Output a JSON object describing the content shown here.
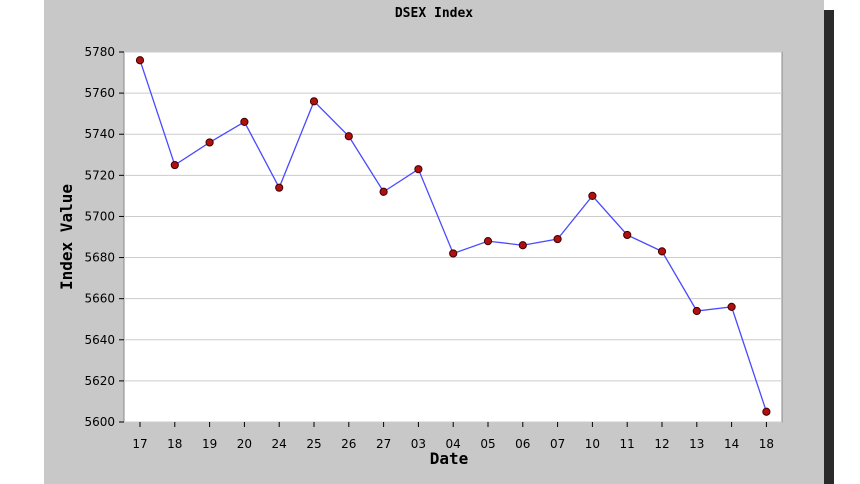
{
  "chart_data": {
    "type": "line",
    "title": "DSEX Index",
    "xlabel": "Date",
    "ylabel": "Index Value",
    "categories": [
      "17",
      "18",
      "19",
      "20",
      "24",
      "25",
      "26",
      "27",
      "03",
      "04",
      "05",
      "06",
      "07",
      "10",
      "11",
      "12",
      "13",
      "14",
      "18"
    ],
    "series": [
      {
        "values": [
          5776,
          5725,
          5736,
          5746,
          5714,
          5756,
          5739,
          5712,
          5723,
          5682,
          5688,
          5686,
          5689,
          5710,
          5691,
          5683,
          5654,
          5656,
          5605
        ]
      }
    ],
    "ylim": [
      5600,
      5780
    ],
    "yticks": [
      5600,
      5620,
      5640,
      5660,
      5680,
      5700,
      5720,
      5740,
      5760,
      5780
    ],
    "grid": true,
    "colors": {
      "line": "#4a4aff",
      "marker_fill": "#b01010",
      "marker_stroke": "#400000",
      "panel": "#c8c8c8",
      "grid": "#cccccc"
    }
  }
}
